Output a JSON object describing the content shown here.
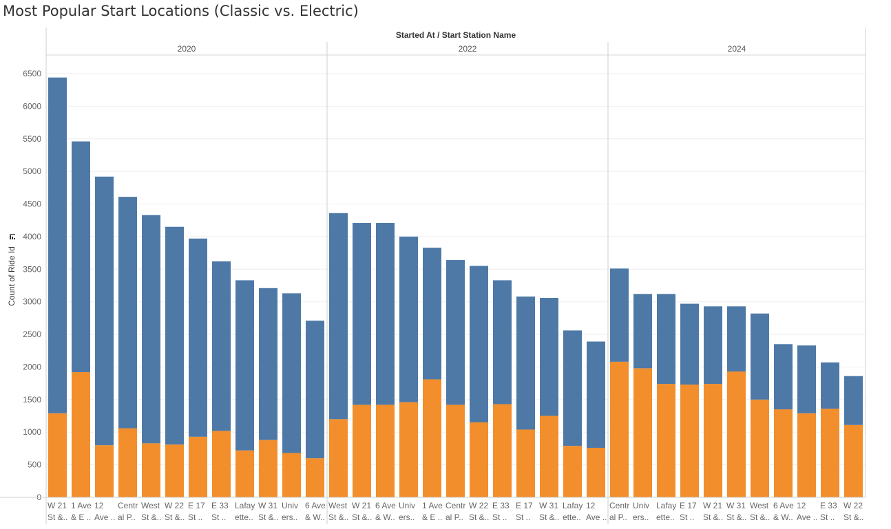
{
  "title": "Most Popular Start Locations (Classic vs. Electric)",
  "colors": {
    "classic": "#4e79a7",
    "electric": "#f28e2b"
  },
  "chart_data": {
    "type": "bar",
    "stacked": true,
    "title": "Most Popular Start Locations (Classic vs. Electric)",
    "column_header": "Started At / Start Station Name",
    "ylabel": "Count of Ride Id",
    "ylim": [
      0,
      6500
    ],
    "yticks": [
      0,
      500,
      1000,
      1500,
      2000,
      2500,
      3000,
      3500,
      4000,
      4500,
      5000,
      5500,
      6000,
      6500
    ],
    "grid": true,
    "series_order": [
      "electric",
      "classic"
    ],
    "panels": [
      {
        "year": "2020",
        "categories": [
          {
            "label": [
              "W 21",
              "St &.."
            ],
            "total": 6440,
            "electric": 1290
          },
          {
            "label": [
              "1 Ave",
              "& E .."
            ],
            "total": 5460,
            "electric": 1920
          },
          {
            "label": [
              "12",
              "Ave .."
            ],
            "total": 4920,
            "electric": 800
          },
          {
            "label": [
              "Centr",
              "al P.."
            ],
            "total": 4610,
            "electric": 1060
          },
          {
            "label": [
              "West",
              "St &.."
            ],
            "total": 4330,
            "electric": 830
          },
          {
            "label": [
              "W 22",
              "St &.."
            ],
            "total": 4150,
            "electric": 810
          },
          {
            "label": [
              "E 17",
              "St .."
            ],
            "total": 3970,
            "electric": 930
          },
          {
            "label": [
              "E 33",
              "St .."
            ],
            "total": 3620,
            "electric": 1020
          },
          {
            "label": [
              "Lafay",
              "ette.."
            ],
            "total": 3330,
            "electric": 720
          },
          {
            "label": [
              "W 31",
              "St &.."
            ],
            "total": 3210,
            "electric": 880
          },
          {
            "label": [
              "Univ",
              "ers.."
            ],
            "total": 3130,
            "electric": 680
          },
          {
            "label": [
              "6 Ave",
              "& W.."
            ],
            "total": 2710,
            "electric": 600
          }
        ]
      },
      {
        "year": "2022",
        "categories": [
          {
            "label": [
              "West",
              "St &.."
            ],
            "total": 4360,
            "electric": 1200
          },
          {
            "label": [
              "W 21",
              "St &.."
            ],
            "total": 4210,
            "electric": 1420
          },
          {
            "label": [
              "6 Ave",
              "& W.."
            ],
            "total": 4210,
            "electric": 1420
          },
          {
            "label": [
              "Univ",
              "ers.."
            ],
            "total": 4000,
            "electric": 1460
          },
          {
            "label": [
              "1 Ave",
              "& E .."
            ],
            "total": 3830,
            "electric": 1810
          },
          {
            "label": [
              "Centr",
              "al P.."
            ],
            "total": 3640,
            "electric": 1420
          },
          {
            "label": [
              "W 22",
              "St &.."
            ],
            "total": 3550,
            "electric": 1150
          },
          {
            "label": [
              "E 33",
              "St .."
            ],
            "total": 3330,
            "electric": 1430
          },
          {
            "label": [
              "E 17",
              "St .."
            ],
            "total": 3080,
            "electric": 1040
          },
          {
            "label": [
              "W 31",
              "St &.."
            ],
            "total": 3060,
            "electric": 1250
          },
          {
            "label": [
              "Lafay",
              "ette.."
            ],
            "total": 2560,
            "electric": 790
          },
          {
            "label": [
              "12",
              "Ave .."
            ],
            "total": 2390,
            "electric": 760
          }
        ]
      },
      {
        "year": "2024",
        "categories": [
          {
            "label": [
              "Centr",
              "al P.."
            ],
            "total": 3510,
            "electric": 2080
          },
          {
            "label": [
              "Univ",
              "ers.."
            ],
            "total": 3120,
            "electric": 1980
          },
          {
            "label": [
              "Lafay",
              "ette.."
            ],
            "total": 3120,
            "electric": 1740
          },
          {
            "label": [
              "E 17",
              "St .."
            ],
            "total": 2970,
            "electric": 1730
          },
          {
            "label": [
              "W 21",
              "St &.."
            ],
            "total": 2930,
            "electric": 1740
          },
          {
            "label": [
              "W 31",
              "St &.."
            ],
            "total": 2930,
            "electric": 1930
          },
          {
            "label": [
              "West",
              "St &.."
            ],
            "total": 2820,
            "electric": 1500
          },
          {
            "label": [
              "6 Ave",
              "& W.."
            ],
            "total": 2350,
            "electric": 1350
          },
          {
            "label": [
              "12",
              "Ave .."
            ],
            "total": 2330,
            "electric": 1290
          },
          {
            "label": [
              "E 33",
              "St .."
            ],
            "total": 2070,
            "electric": 1360
          },
          {
            "label": [
              "W 22",
              "St &.."
            ],
            "total": 1860,
            "electric": 1110
          }
        ]
      }
    ]
  }
}
